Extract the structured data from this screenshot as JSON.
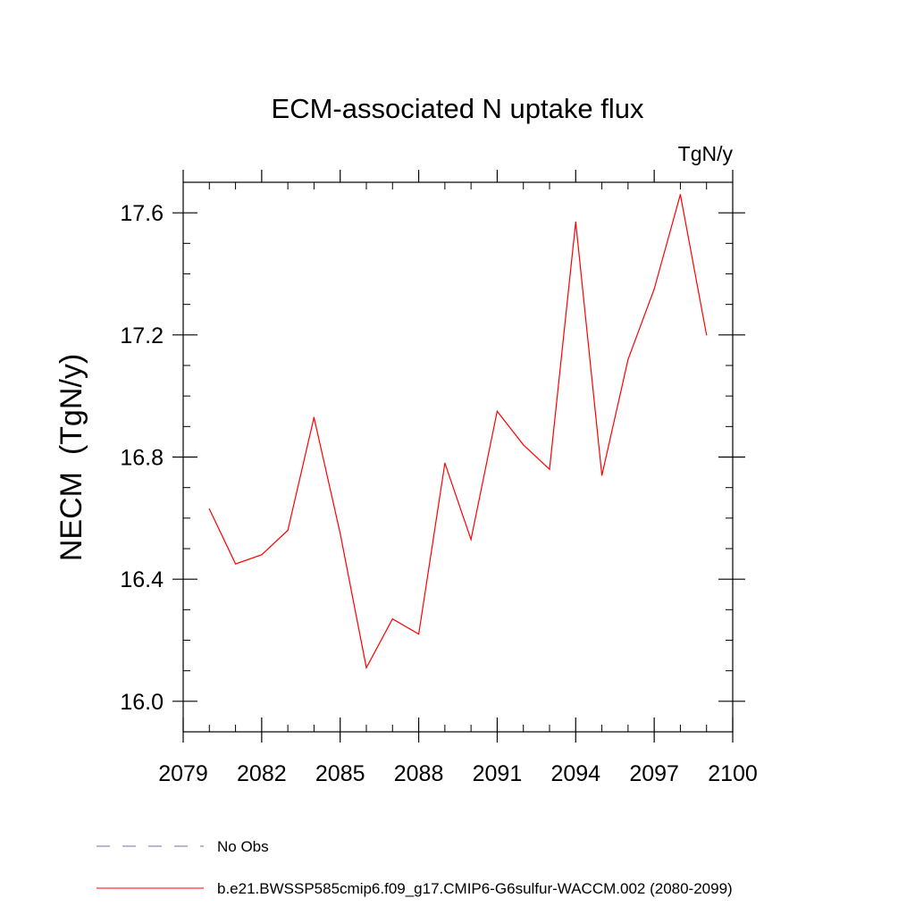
{
  "chart_data": {
    "type": "line",
    "title": "ECM-associated N uptake flux",
    "units": "TgN/y",
    "ylabel": "NECM  (TgN/y)",
    "xlabel": "",
    "xlim": [
      2079,
      2100
    ],
    "ylim": [
      15.9,
      17.7
    ],
    "x_ticks": [
      2079,
      2082,
      2085,
      2088,
      2091,
      2094,
      2097,
      2100
    ],
    "x_minor_ticks": [
      2080,
      2081,
      2083,
      2084,
      2086,
      2087,
      2089,
      2090,
      2092,
      2093,
      2095,
      2096,
      2098,
      2099
    ],
    "y_ticks": [
      16.0,
      16.4,
      16.8,
      17.2,
      17.6
    ],
    "y_tick_labels": [
      "16.0",
      "16.4",
      "16.8",
      "17.2",
      "17.6"
    ],
    "y_minor_ticks": [
      15.9,
      16.1,
      16.2,
      16.3,
      16.5,
      16.6,
      16.7,
      16.9,
      17.0,
      17.1,
      17.3,
      17.4,
      17.5,
      17.7
    ],
    "grid": false,
    "legend_position": "bottom",
    "series": [
      {
        "name": "b.e21.BWSSP585cmip6.f09_g17.CMIP6-G6sulfur-WACCM.002 (2080-2099)",
        "color": "#ff0000",
        "dash": "solid",
        "x": [
          2080,
          2081,
          2082,
          2083,
          2084,
          2085,
          2086,
          2087,
          2088,
          2089,
          2090,
          2091,
          2092,
          2093,
          2094,
          2095,
          2096,
          2097,
          2098,
          2099
        ],
        "values": [
          16.63,
          16.45,
          16.48,
          16.56,
          16.93,
          16.55,
          16.11,
          16.27,
          16.22,
          16.78,
          16.53,
          16.95,
          16.84,
          16.76,
          17.57,
          16.74,
          17.12,
          17.35,
          17.66,
          17.2
        ]
      }
    ],
    "legend": [
      {
        "label": "No Obs",
        "color": "#7b68b8",
        "dash": "dashed"
      },
      {
        "label": "b.e21.BWSSP585cmip6.f09_g17.CMIP6-G6sulfur-WACCM.002 (2080-2099)",
        "color": "#ff0000",
        "dash": "solid"
      }
    ]
  }
}
